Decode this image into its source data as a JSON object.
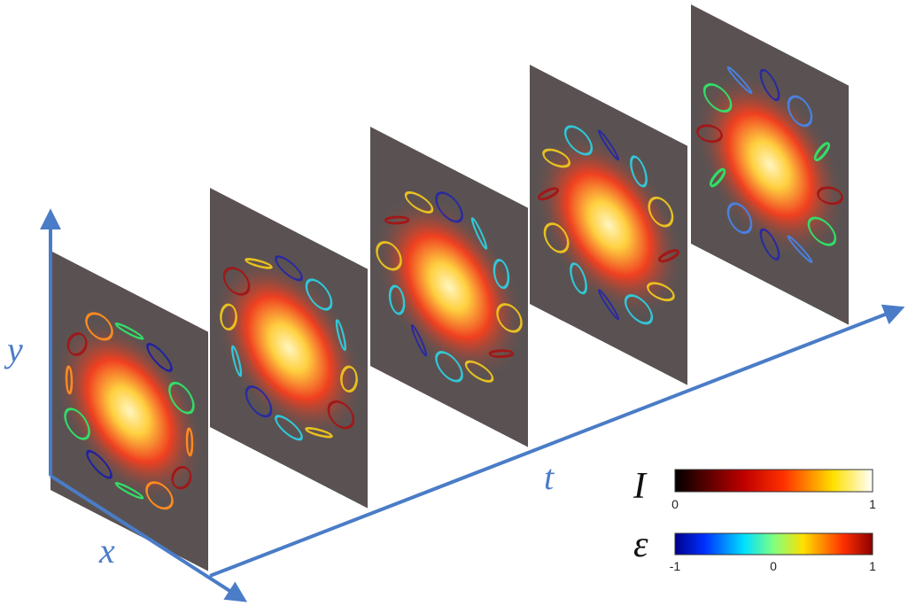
{
  "axes": {
    "y": "y",
    "x": "x",
    "t": "t"
  },
  "colorbars": [
    {
      "symbol": "I",
      "labels": [
        "0",
        "1"
      ]
    },
    {
      "symbol": "ε",
      "labels": [
        "-1",
        "0",
        "1"
      ]
    }
  ]
}
